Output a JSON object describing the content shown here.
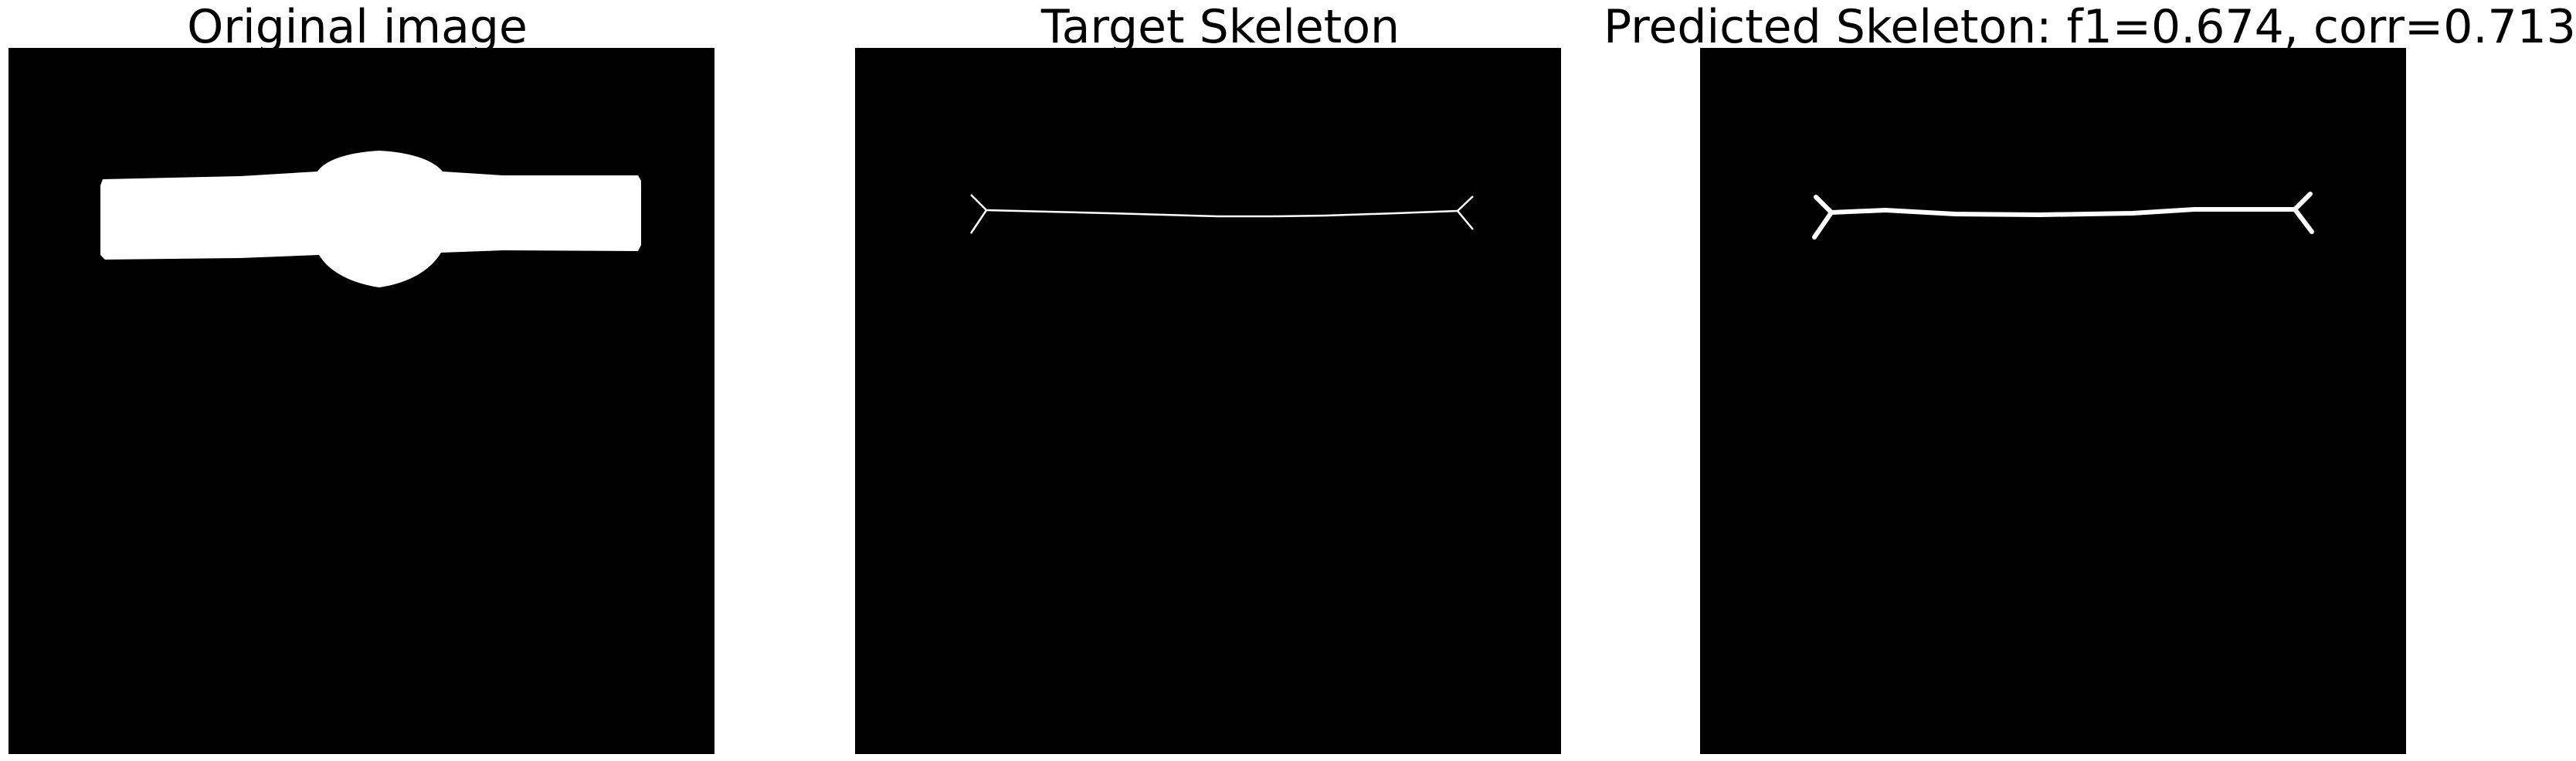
{
  "panels": [
    {
      "title": "Original image"
    },
    {
      "title": "Target Skeleton"
    },
    {
      "title": "Predicted Skeleton: f1=0.674, corr=0.713"
    }
  ],
  "colors": {
    "background": "#000000",
    "foreground": "#ffffff"
  }
}
